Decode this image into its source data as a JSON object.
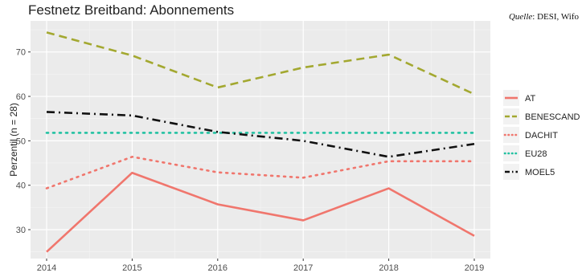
{
  "header": {
    "title": "Festnetz Breitband: Abonnements",
    "source_label": "Quelle",
    "source_text": ": DESI, Wifo"
  },
  "chart_data": {
    "type": "line",
    "title": "Festnetz Breitband: Abonnements",
    "xlabel": "",
    "ylabel": "Perzentil (n = 28)",
    "x": [
      2014,
      2015,
      2016,
      2017,
      2018,
      2019
    ],
    "xlim": [
      2014,
      2019
    ],
    "ylim": [
      23.5,
      77
    ],
    "yticks": [
      30,
      40,
      50,
      60,
      70
    ],
    "grid": true,
    "legend_position": "right",
    "series": [
      {
        "name": "AT",
        "color": "#f0766d",
        "dash": "solid",
        "values": [
          25.0,
          42.8,
          35.7,
          32.1,
          39.3,
          28.6
        ]
      },
      {
        "name": "BENESCAND",
        "color": "#a3a830",
        "dash": "dashed",
        "values": [
          74.4,
          69.2,
          62.0,
          66.5,
          69.4,
          60.5
        ]
      },
      {
        "name": "DACHIT",
        "color": "#f0766d",
        "dash": "dotted",
        "values": [
          39.3,
          46.4,
          42.9,
          41.7,
          45.4,
          45.4
        ]
      },
      {
        "name": "EU28",
        "color": "#22c1a2",
        "dash": "dotted",
        "values": [
          51.8,
          51.8,
          51.8,
          51.8,
          51.8,
          51.8
        ]
      },
      {
        "name": "MOEL5",
        "color": "#111111",
        "dash": "dashdot",
        "values": [
          56.5,
          55.7,
          52.0,
          50.0,
          46.4,
          49.3
        ]
      }
    ]
  }
}
